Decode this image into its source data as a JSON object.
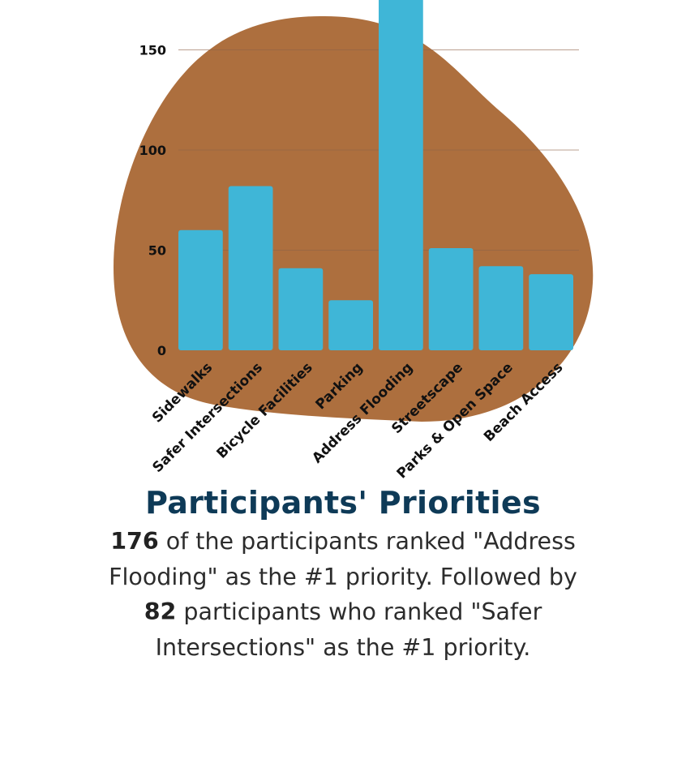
{
  "colors": {
    "blob": "#ad6f3e",
    "bar": "#3fb6d7",
    "grid": "#8e6247",
    "title": "#0e3a57",
    "text": "#2c2c2c"
  },
  "chart_data": {
    "type": "bar",
    "title": "Participants' Priorities",
    "categories": [
      "Sidewalks",
      "Safer Intersections",
      "Bicycle Facilities",
      "Parking",
      "Address Flooding",
      "Streetscape",
      "Parks & Open Space",
      "Beach Access"
    ],
    "values": [
      60,
      82,
      41,
      25,
      176,
      51,
      42,
      38
    ],
    "yticks": [
      0,
      50,
      100,
      150
    ],
    "ylim": [
      0,
      175
    ],
    "xlabel": "",
    "ylabel": "",
    "grid": true
  },
  "caption": {
    "title": "Participants' Priorities",
    "part1_bold": "176",
    "part2": " of the participants ranked \"Address Flooding\" as the #1 priority. Followed by ",
    "part3_bold": "82",
    "part4": " participants who ranked \"Safer Intersections\" as the #1 priority."
  }
}
